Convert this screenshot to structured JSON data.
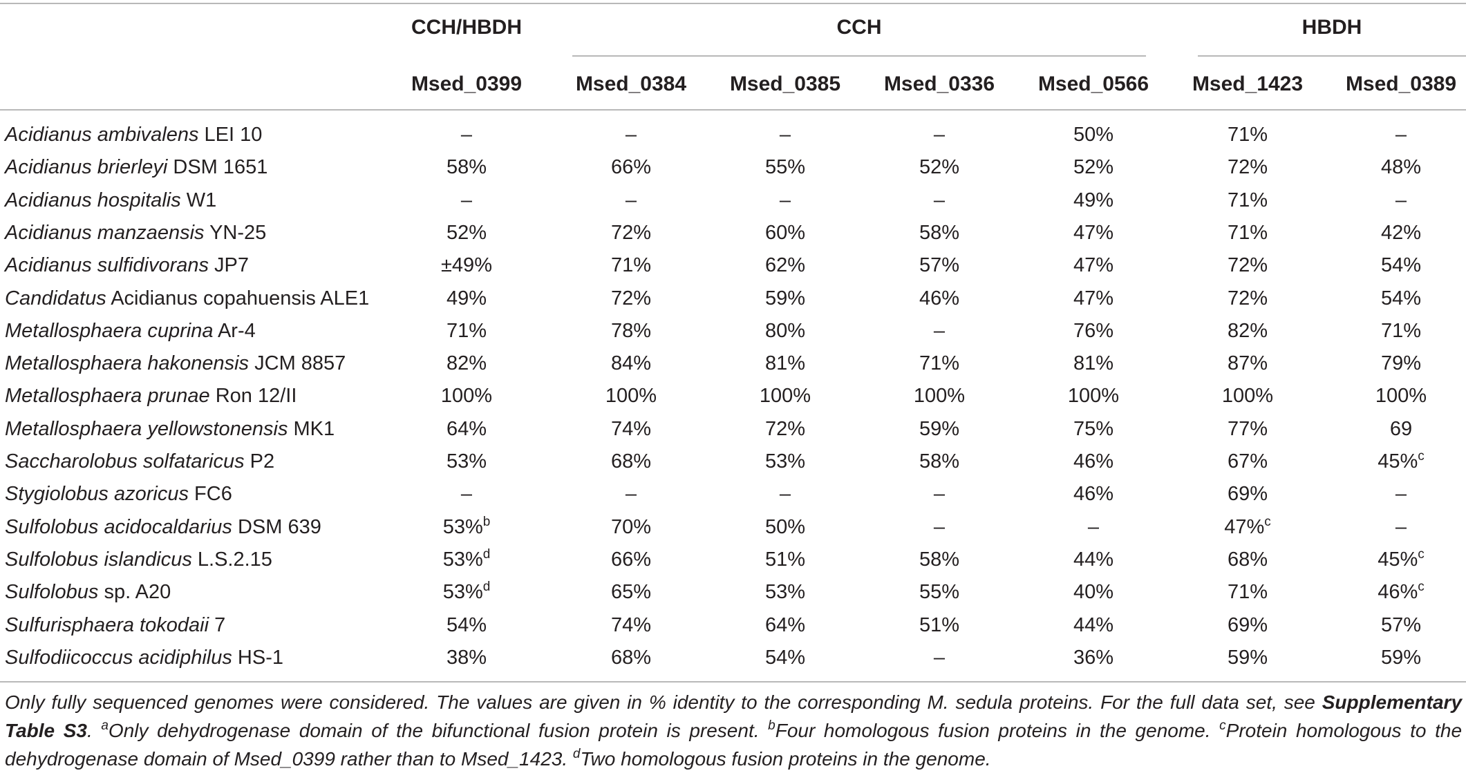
{
  "groups": [
    {
      "label": "CCH/HBDH"
    },
    {
      "label": "CCH"
    },
    {
      "label": "HBDH"
    }
  ],
  "columns": [
    "Msed_0399",
    "Msed_0384",
    "Msed_0385",
    "Msed_0336",
    "Msed_0566",
    "Msed_1423",
    "Msed_0389"
  ],
  "rows": [
    {
      "genus": "Acidianus ambivalens",
      "strain": "LEI 10",
      "cells": [
        {
          "v": "–"
        },
        {
          "v": "–"
        },
        {
          "v": "–"
        },
        {
          "v": "–"
        },
        {
          "v": "50%"
        },
        {
          "v": "71%"
        },
        {
          "v": "–"
        }
      ]
    },
    {
      "genus": "Acidianus brierleyi",
      "strain": "DSM 1651",
      "cells": [
        {
          "v": "58%"
        },
        {
          "v": "66%"
        },
        {
          "v": "55%"
        },
        {
          "v": "52%"
        },
        {
          "v": "52%"
        },
        {
          "v": "72%"
        },
        {
          "v": "48%"
        }
      ]
    },
    {
      "genus": "Acidianus hospitalis",
      "strain": "W1",
      "cells": [
        {
          "v": "–"
        },
        {
          "v": "–"
        },
        {
          "v": "–"
        },
        {
          "v": "–"
        },
        {
          "v": "49%"
        },
        {
          "v": "71%"
        },
        {
          "v": "–"
        }
      ]
    },
    {
      "genus": "Acidianus manzaensis",
      "strain": "YN-25",
      "cells": [
        {
          "v": "52%"
        },
        {
          "v": "72%"
        },
        {
          "v": "60%"
        },
        {
          "v": "58%"
        },
        {
          "v": "47%"
        },
        {
          "v": "71%"
        },
        {
          "v": "42%"
        }
      ]
    },
    {
      "genus": "Acidianus sulfidivorans",
      "strain": "JP7",
      "cells": [
        {
          "v": "±49%"
        },
        {
          "v": "71%"
        },
        {
          "v": "62%"
        },
        {
          "v": "57%"
        },
        {
          "v": "47%"
        },
        {
          "v": "72%"
        },
        {
          "v": "54%"
        }
      ]
    },
    {
      "genus": "Candidatus",
      "strain": "Acidianus copahuensis ALE1",
      "cells": [
        {
          "v": "49%"
        },
        {
          "v": "72%"
        },
        {
          "v": "59%"
        },
        {
          "v": "46%"
        },
        {
          "v": "47%"
        },
        {
          "v": "72%"
        },
        {
          "v": "54%"
        }
      ]
    },
    {
      "genus": "Metallosphaera cuprina",
      "strain": "Ar-4",
      "cells": [
        {
          "v": "71%"
        },
        {
          "v": "78%"
        },
        {
          "v": "80%"
        },
        {
          "v": "–"
        },
        {
          "v": "76%"
        },
        {
          "v": "82%"
        },
        {
          "v": "71%"
        }
      ]
    },
    {
      "genus": "Metallosphaera hakonensis",
      "strain": "JCM 8857",
      "cells": [
        {
          "v": "82%"
        },
        {
          "v": "84%"
        },
        {
          "v": "81%"
        },
        {
          "v": "71%"
        },
        {
          "v": "81%"
        },
        {
          "v": "87%"
        },
        {
          "v": "79%"
        }
      ]
    },
    {
      "genus": "Metallosphaera prunae",
      "strain": "Ron 12/II",
      "cells": [
        {
          "v": "100%"
        },
        {
          "v": "100%"
        },
        {
          "v": "100%"
        },
        {
          "v": "100%"
        },
        {
          "v": "100%"
        },
        {
          "v": "100%"
        },
        {
          "v": "100%"
        }
      ]
    },
    {
      "genus": "Metallosphaera yellowstonensis",
      "strain": "MK1",
      "cells": [
        {
          "v": "64%"
        },
        {
          "v": "74%"
        },
        {
          "v": "72%"
        },
        {
          "v": "59%"
        },
        {
          "v": "75%"
        },
        {
          "v": "77%"
        },
        {
          "v": "69"
        }
      ]
    },
    {
      "genus": "Saccharolobus solfataricus",
      "strain": "P2",
      "cells": [
        {
          "v": "53%"
        },
        {
          "v": "68%"
        },
        {
          "v": "53%"
        },
        {
          "v": "58%"
        },
        {
          "v": "46%"
        },
        {
          "v": "67%"
        },
        {
          "v": "45%",
          "sup": "c"
        }
      ]
    },
    {
      "genus": "Stygiolobus azoricus",
      "strain": "FC6",
      "cells": [
        {
          "v": "–"
        },
        {
          "v": "–"
        },
        {
          "v": "–"
        },
        {
          "v": "–"
        },
        {
          "v": "46%"
        },
        {
          "v": "69%"
        },
        {
          "v": "–"
        }
      ]
    },
    {
      "genus": "Sulfolobus acidocaldarius",
      "strain": "DSM 639",
      "cells": [
        {
          "v": "53%",
          "sup": "b"
        },
        {
          "v": "70%"
        },
        {
          "v": "50%"
        },
        {
          "v": "–"
        },
        {
          "v": "–"
        },
        {
          "v": "47%",
          "sup": "c"
        },
        {
          "v": "–"
        }
      ]
    },
    {
      "genus": "Sulfolobus islandicus",
      "strain": "L.S.2.15",
      "cells": [
        {
          "v": "53%",
          "sup": "d"
        },
        {
          "v": "66%"
        },
        {
          "v": "51%"
        },
        {
          "v": "58%"
        },
        {
          "v": "44%"
        },
        {
          "v": "68%"
        },
        {
          "v": "45%",
          "sup": "c"
        }
      ]
    },
    {
      "genus": "Sulfolobus",
      "strain": "sp. A20",
      "cells": [
        {
          "v": "53%",
          "sup": "d"
        },
        {
          "v": "65%"
        },
        {
          "v": "53%"
        },
        {
          "v": "55%"
        },
        {
          "v": "40%"
        },
        {
          "v": "71%"
        },
        {
          "v": "46%",
          "sup": "c"
        }
      ]
    },
    {
      "genus": "Sulfurisphaera tokodaii",
      "strain": "7",
      "cells": [
        {
          "v": "54%"
        },
        {
          "v": "74%"
        },
        {
          "v": "64%"
        },
        {
          "v": "51%"
        },
        {
          "v": "44%"
        },
        {
          "v": "69%"
        },
        {
          "v": "57%"
        }
      ]
    },
    {
      "genus": "Sulfodiicoccus acidiphilus",
      "strain": "HS-1",
      "cells": [
        {
          "v": "38%"
        },
        {
          "v": "68%"
        },
        {
          "v": "54%"
        },
        {
          "v": "–"
        },
        {
          "v": "36%"
        },
        {
          "v": "59%"
        },
        {
          "v": "59%"
        }
      ]
    }
  ],
  "footnote": {
    "intro": "Only fully sequenced genomes were considered. The values are given in % identity to the corresponding M. sedula proteins. For the full data set, see",
    "supp_ref": "Supplementary Table S3",
    "notes": [
      {
        "mark": "a",
        "text": "Only dehydrogenase domain of the bifunctional fusion protein is present."
      },
      {
        "mark": "b",
        "text": "Four homologous fusion proteins in the genome."
      },
      {
        "mark": "c",
        "text": "Protein homologous to the dehydrogenase domain of Msed_0399 rather than to Msed_1423."
      },
      {
        "mark": "d",
        "text": "Two homologous fusion proteins in the genome."
      }
    ]
  }
}
